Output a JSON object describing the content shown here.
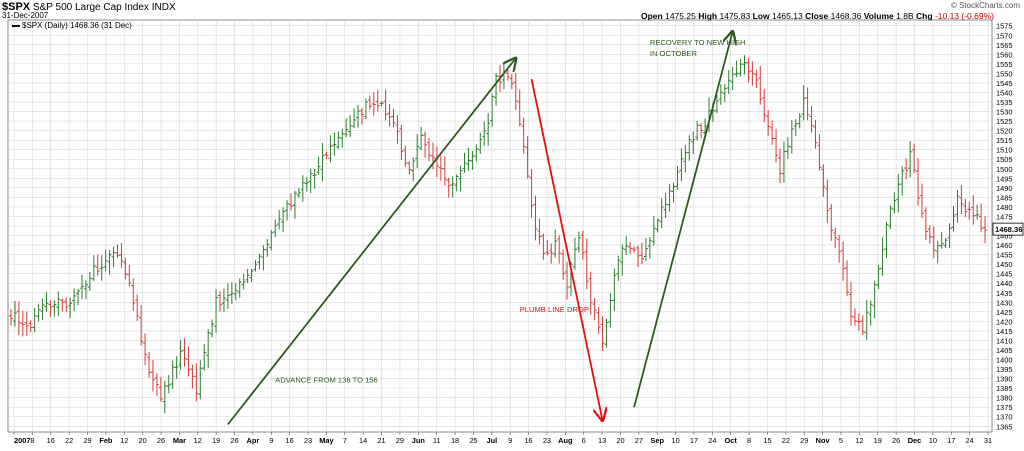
{
  "header": {
    "symbol": "$SPX",
    "index_name": "S&P 500 Large Cap Index",
    "exchange": "INDX",
    "date": "31-Dec-2007",
    "watermark": "© StockCharts.com",
    "legend": "$SPX (Daily) 1468.36 (31 Dec)",
    "open_label": "Open",
    "open": "1475.25",
    "high_label": "High",
    "high": "1475.83",
    "low_label": "Low",
    "low": "1465.13",
    "close_label": "Close",
    "close": "1468.36",
    "volume_label": "Volume",
    "volume": "1.8B",
    "chg_label": "Chg",
    "chg": "-10.13 (-0.69%)"
  },
  "colors": {
    "up": "#2e7d2e",
    "down": "#d23c3c",
    "arrow_green": "#2f5a1e",
    "arrow_red": "#e01010",
    "grid": "#d6d6d6"
  },
  "chart_data": {
    "type": "ohlc",
    "ylim": [
      1362,
      1578
    ],
    "y_ticks": [
      1365,
      1370,
      1375,
      1380,
      1385,
      1390,
      1395,
      1400,
      1405,
      1410,
      1415,
      1420,
      1425,
      1430,
      1435,
      1440,
      1445,
      1450,
      1455,
      1460,
      1465,
      1470,
      1475,
      1480,
      1485,
      1490,
      1495,
      1500,
      1505,
      1510,
      1515,
      1520,
      1525,
      1530,
      1535,
      1540,
      1545,
      1550,
      1555,
      1560,
      1565,
      1570,
      1575
    ],
    "last_price_label": "1468.36",
    "x_ticks": [
      {
        "label": "2007",
        "bold": true
      },
      {
        "label": "8"
      },
      {
        "label": "16"
      },
      {
        "label": "22"
      },
      {
        "label": "29"
      },
      {
        "label": "Feb",
        "bold": true
      },
      {
        "label": "12"
      },
      {
        "label": "20"
      },
      {
        "label": "26"
      },
      {
        "label": "Mar",
        "bold": true
      },
      {
        "label": "12"
      },
      {
        "label": "19"
      },
      {
        "label": "26"
      },
      {
        "label": "Apr",
        "bold": true
      },
      {
        "label": "9"
      },
      {
        "label": "16"
      },
      {
        "label": "23"
      },
      {
        "label": "May",
        "bold": true
      },
      {
        "label": "7"
      },
      {
        "label": "14"
      },
      {
        "label": "21"
      },
      {
        "label": "29"
      },
      {
        "label": "Jun",
        "bold": true
      },
      {
        "label": "11"
      },
      {
        "label": "18"
      },
      {
        "label": "25"
      },
      {
        "label": "Jul",
        "bold": true
      },
      {
        "label": "9"
      },
      {
        "label": "16"
      },
      {
        "label": "23"
      },
      {
        "label": "Aug",
        "bold": true
      },
      {
        "label": "6"
      },
      {
        "label": "13"
      },
      {
        "label": "20"
      },
      {
        "label": "27"
      },
      {
        "label": "Sep",
        "bold": true
      },
      {
        "label": "10"
      },
      {
        "label": "17"
      },
      {
        "label": "24"
      },
      {
        "label": "Oct",
        "bold": true
      },
      {
        "label": "8"
      },
      {
        "label": "15"
      },
      {
        "label": "22"
      },
      {
        "label": "29"
      },
      {
        "label": "Nov",
        "bold": true
      },
      {
        "label": "5"
      },
      {
        "label": "12"
      },
      {
        "label": "19"
      },
      {
        "label": "26"
      },
      {
        "label": "Dec",
        "bold": true
      },
      {
        "label": "10"
      },
      {
        "label": "17"
      },
      {
        "label": "24"
      },
      {
        "label": "31"
      }
    ],
    "anchors": [
      {
        "day": 0,
        "price": 1424
      },
      {
        "day": 4,
        "price": 1415
      },
      {
        "day": 8,
        "price": 1430
      },
      {
        "day": 15,
        "price": 1428
      },
      {
        "day": 20,
        "price": 1445
      },
      {
        "day": 27,
        "price": 1456
      },
      {
        "day": 30,
        "price": 1440
      },
      {
        "day": 35,
        "price": 1393
      },
      {
        "day": 38,
        "price": 1380
      },
      {
        "day": 43,
        "price": 1402
      },
      {
        "day": 47,
        "price": 1385
      },
      {
        "day": 52,
        "price": 1430
      },
      {
        "day": 57,
        "price": 1437
      },
      {
        "day": 62,
        "price": 1448
      },
      {
        "day": 67,
        "price": 1470
      },
      {
        "day": 72,
        "price": 1485
      },
      {
        "day": 77,
        "price": 1497
      },
      {
        "day": 82,
        "price": 1515
      },
      {
        "day": 87,
        "price": 1528
      },
      {
        "day": 92,
        "price": 1535
      },
      {
        "day": 97,
        "price": 1527
      },
      {
        "day": 101,
        "price": 1497
      },
      {
        "day": 104,
        "price": 1520
      },
      {
        "day": 108,
        "price": 1500
      },
      {
        "day": 112,
        "price": 1492
      },
      {
        "day": 116,
        "price": 1505
      },
      {
        "day": 121,
        "price": 1525
      },
      {
        "day": 123,
        "price": 1547
      },
      {
        "day": 126,
        "price": 1550
      },
      {
        "day": 129,
        "price": 1525
      },
      {
        "day": 132,
        "price": 1480
      },
      {
        "day": 135,
        "price": 1453
      },
      {
        "day": 138,
        "price": 1460
      },
      {
        "day": 141,
        "price": 1440
      },
      {
        "day": 144,
        "price": 1465
      },
      {
        "day": 147,
        "price": 1432
      },
      {
        "day": 150,
        "price": 1410
      },
      {
        "day": 153,
        "price": 1445
      },
      {
        "day": 156,
        "price": 1462
      },
      {
        "day": 160,
        "price": 1455
      },
      {
        "day": 164,
        "price": 1475
      },
      {
        "day": 168,
        "price": 1490
      },
      {
        "day": 172,
        "price": 1515
      },
      {
        "day": 176,
        "price": 1525
      },
      {
        "day": 180,
        "price": 1540
      },
      {
        "day": 183,
        "price": 1547
      },
      {
        "day": 186,
        "price": 1555
      },
      {
        "day": 189,
        "price": 1548
      },
      {
        "day": 192,
        "price": 1522
      },
      {
        "day": 195,
        "price": 1500
      },
      {
        "day": 198,
        "price": 1520
      },
      {
        "day": 201,
        "price": 1535
      },
      {
        "day": 204,
        "price": 1515
      },
      {
        "day": 207,
        "price": 1477
      },
      {
        "day": 210,
        "price": 1455
      },
      {
        "day": 213,
        "price": 1425
      },
      {
        "day": 216,
        "price": 1415
      },
      {
        "day": 219,
        "price": 1440
      },
      {
        "day": 222,
        "price": 1470
      },
      {
        "day": 225,
        "price": 1490
      },
      {
        "day": 228,
        "price": 1508
      },
      {
        "day": 231,
        "price": 1475
      },
      {
        "day": 234,
        "price": 1455
      },
      {
        "day": 237,
        "price": 1462
      },
      {
        "day": 240,
        "price": 1485
      },
      {
        "day": 243,
        "price": 1478
      },
      {
        "day": 247,
        "price": 1468
      }
    ],
    "annotations": [
      {
        "id": "advance",
        "text": "ADVANCE FROM 136 TO 156",
        "color": "green",
        "day": 67,
        "price": 1388
      },
      {
        "id": "plumb",
        "text": "PLUMB LINE DROP",
        "color": "red",
        "day": 129,
        "price": 1425
      },
      {
        "id": "recovery1",
        "text": "RECOVERY TO NEW HIGH",
        "color": "green",
        "day": 162,
        "price": 1565
      },
      {
        "id": "recovery2",
        "text": "IN OCTOBER",
        "color": "green",
        "day": 162,
        "price": 1559
      }
    ],
    "arrows": [
      {
        "id": "advance-arrow",
        "color": "green",
        "from": {
          "day": 55,
          "price": 1366
        },
        "to": {
          "day": 128,
          "price": 1558
        }
      },
      {
        "id": "plumb-arrow",
        "color": "red",
        "from": {
          "day": 132,
          "price": 1547
        },
        "to": {
          "day": 150,
          "price": 1368
        }
      },
      {
        "id": "recovery-arrow",
        "color": "green",
        "from": {
          "day": 158,
          "price": 1375
        },
        "to": {
          "day": 183,
          "price": 1572
        }
      }
    ]
  }
}
